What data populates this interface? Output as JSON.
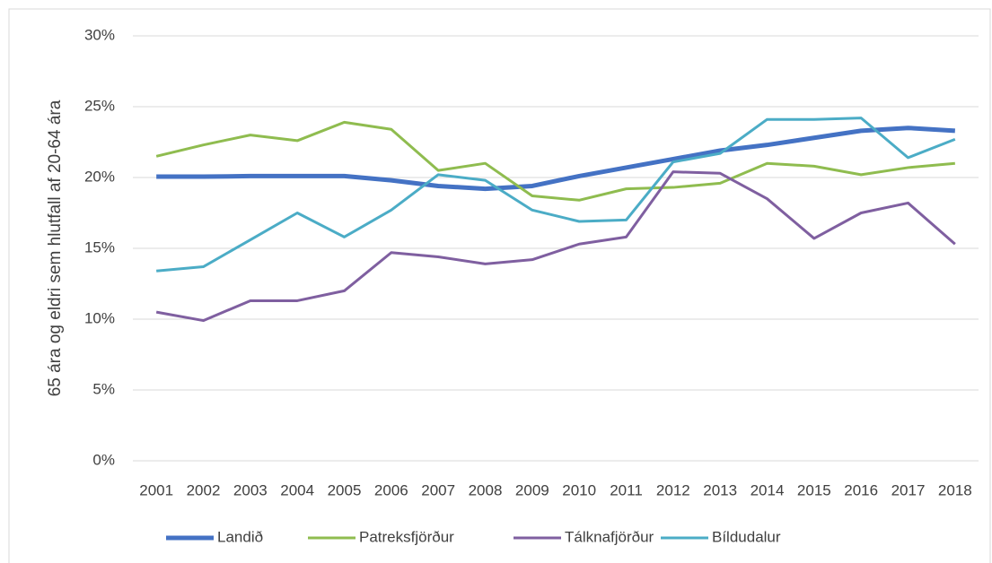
{
  "chart_data": {
    "type": "line",
    "y_label": "65 ára og eldri sem hlutfall af 20-64 ára",
    "categories": [
      "2001",
      "2002",
      "2003",
      "2004",
      "2005",
      "2006",
      "2007",
      "2008",
      "2009",
      "2010",
      "2011",
      "2012",
      "2013",
      "2014",
      "2015",
      "2016",
      "2017",
      "2018"
    ],
    "series": [
      {
        "name": "Landið",
        "color": "#4472c4",
        "values": [
          20.06,
          20.06,
          20.1,
          20.1,
          20.1,
          19.8,
          19.4,
          19.2,
          19.4,
          20.1,
          20.7,
          21.3,
          21.9,
          22.3,
          22.8,
          23.3,
          23.5,
          23.3
        ]
      },
      {
        "name": "Patreksfjörður",
        "color": "#8fbc4f",
        "values": [
          21.5,
          22.3,
          23.0,
          22.6,
          23.9,
          23.4,
          20.5,
          21.0,
          18.7,
          18.4,
          19.2,
          19.3,
          19.6,
          21.0,
          20.8,
          20.2,
          20.7,
          21.0
        ]
      },
      {
        "name": "Tálknafjörður",
        "color": "#7f5fa0",
        "values": [
          10.5,
          9.9,
          11.3,
          11.3,
          12.0,
          14.7,
          14.4,
          13.9,
          14.2,
          15.3,
          15.8,
          20.4,
          20.3,
          18.5,
          15.7,
          17.5,
          18.2,
          15.3
        ]
      },
      {
        "name": "Bíldudalur",
        "color": "#4bacc6",
        "values": [
          13.4,
          13.7,
          15.6,
          17.5,
          15.8,
          17.7,
          20.2,
          19.8,
          17.7,
          16.9,
          17.0,
          21.1,
          21.7,
          24.1,
          24.1,
          24.2,
          21.4,
          22.7
        ]
      }
    ],
    "ylim": [
      0,
      30
    ],
    "yticks": [
      {
        "value": 0,
        "label": "0%"
      },
      {
        "value": 5,
        "label": "5%"
      },
      {
        "value": 10,
        "label": "10%"
      },
      {
        "value": 15,
        "label": "15%"
      },
      {
        "value": 20,
        "label": "20%"
      },
      {
        "value": 25,
        "label": "25%"
      },
      {
        "value": 30,
        "label": "30%"
      }
    ],
    "grid": true,
    "legend": "bottom"
  }
}
